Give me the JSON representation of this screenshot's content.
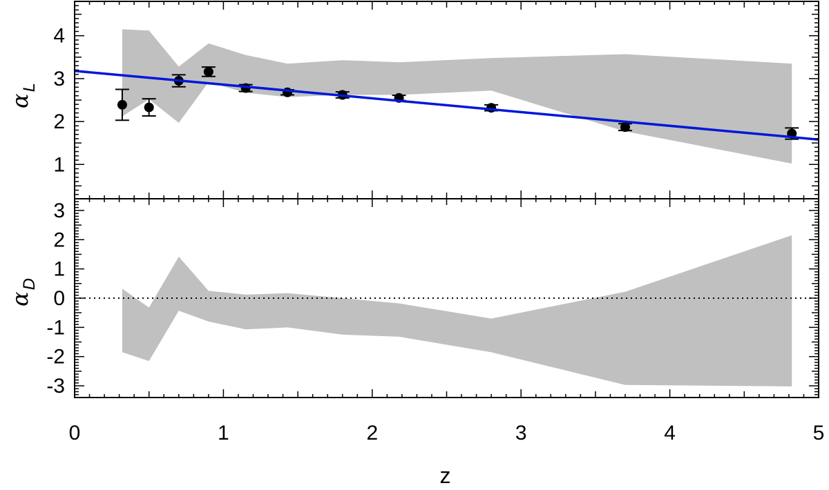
{
  "chart_data": {
    "type": "scatter",
    "x_axis": {
      "label": "z",
      "range": [
        0,
        5
      ],
      "ticks": [
        0,
        1,
        2,
        3,
        4,
        5
      ],
      "tick_labels": [
        "0",
        "1",
        "2",
        "3",
        "4",
        "5"
      ]
    },
    "panels": [
      {
        "id": "top",
        "ylabel_symbol": "α",
        "ylabel_sub": "L",
        "ylim": [
          0.2,
          4.8
        ],
        "y_ticks": [
          1,
          2,
          3,
          4
        ],
        "y_tick_labels": [
          "1",
          "2",
          "3",
          "4"
        ],
        "band": {
          "x": [
            0.32,
            0.5,
            0.7,
            0.9,
            1.15,
            1.43,
            1.8,
            2.18,
            2.8,
            3.7,
            4.82
          ],
          "upper": [
            4.15,
            4.12,
            3.28,
            3.82,
            3.55,
            3.35,
            3.43,
            3.38,
            3.48,
            3.57,
            3.35
          ],
          "lower": [
            2.12,
            2.52,
            1.97,
            2.92,
            2.67,
            2.57,
            2.62,
            2.62,
            2.72,
            1.77,
            1.02
          ]
        },
        "points": {
          "x": [
            0.32,
            0.5,
            0.7,
            0.9,
            1.15,
            1.43,
            1.8,
            2.18,
            2.8,
            3.7,
            4.82
          ],
          "y": [
            2.39,
            2.33,
            2.95,
            3.16,
            2.78,
            2.68,
            2.62,
            2.55,
            2.32,
            1.87,
            1.72
          ],
          "err": [
            0.36,
            0.2,
            0.14,
            0.11,
            0.08,
            0.06,
            0.07,
            0.06,
            0.07,
            0.08,
            0.13
          ]
        },
        "fit_line": {
          "x": [
            0,
            5
          ],
          "y": [
            3.18,
            1.58
          ],
          "color": "#0018d8"
        }
      },
      {
        "id": "bottom",
        "ylabel_symbol": "α",
        "ylabel_sub": "D",
        "ylim": [
          -3.4,
          3.4
        ],
        "y_ticks": [
          -3,
          -2,
          -1,
          0,
          1,
          2,
          3
        ],
        "y_tick_labels": [
          "-3",
          "-2",
          "-1",
          "0",
          "1",
          "2",
          "3"
        ],
        "band": {
          "x": [
            0.32,
            0.5,
            0.7,
            0.9,
            1.15,
            1.43,
            1.8,
            2.18,
            2.8,
            3.7,
            4.82
          ],
          "upper": [
            0.32,
            -0.32,
            1.42,
            0.25,
            0.12,
            0.17,
            0.0,
            -0.18,
            -0.7,
            0.22,
            2.15
          ],
          "lower": [
            -1.85,
            -2.15,
            -0.43,
            -0.8,
            -1.07,
            -1.0,
            -1.25,
            -1.32,
            -1.85,
            -2.97,
            -3.02
          ]
        },
        "reference_line": {
          "y": 0,
          "style": "dotted"
        }
      }
    ],
    "colors": {
      "band": "#c0c0c0",
      "points": "#000000",
      "fit": "#0018d8"
    },
    "grid": false
  }
}
